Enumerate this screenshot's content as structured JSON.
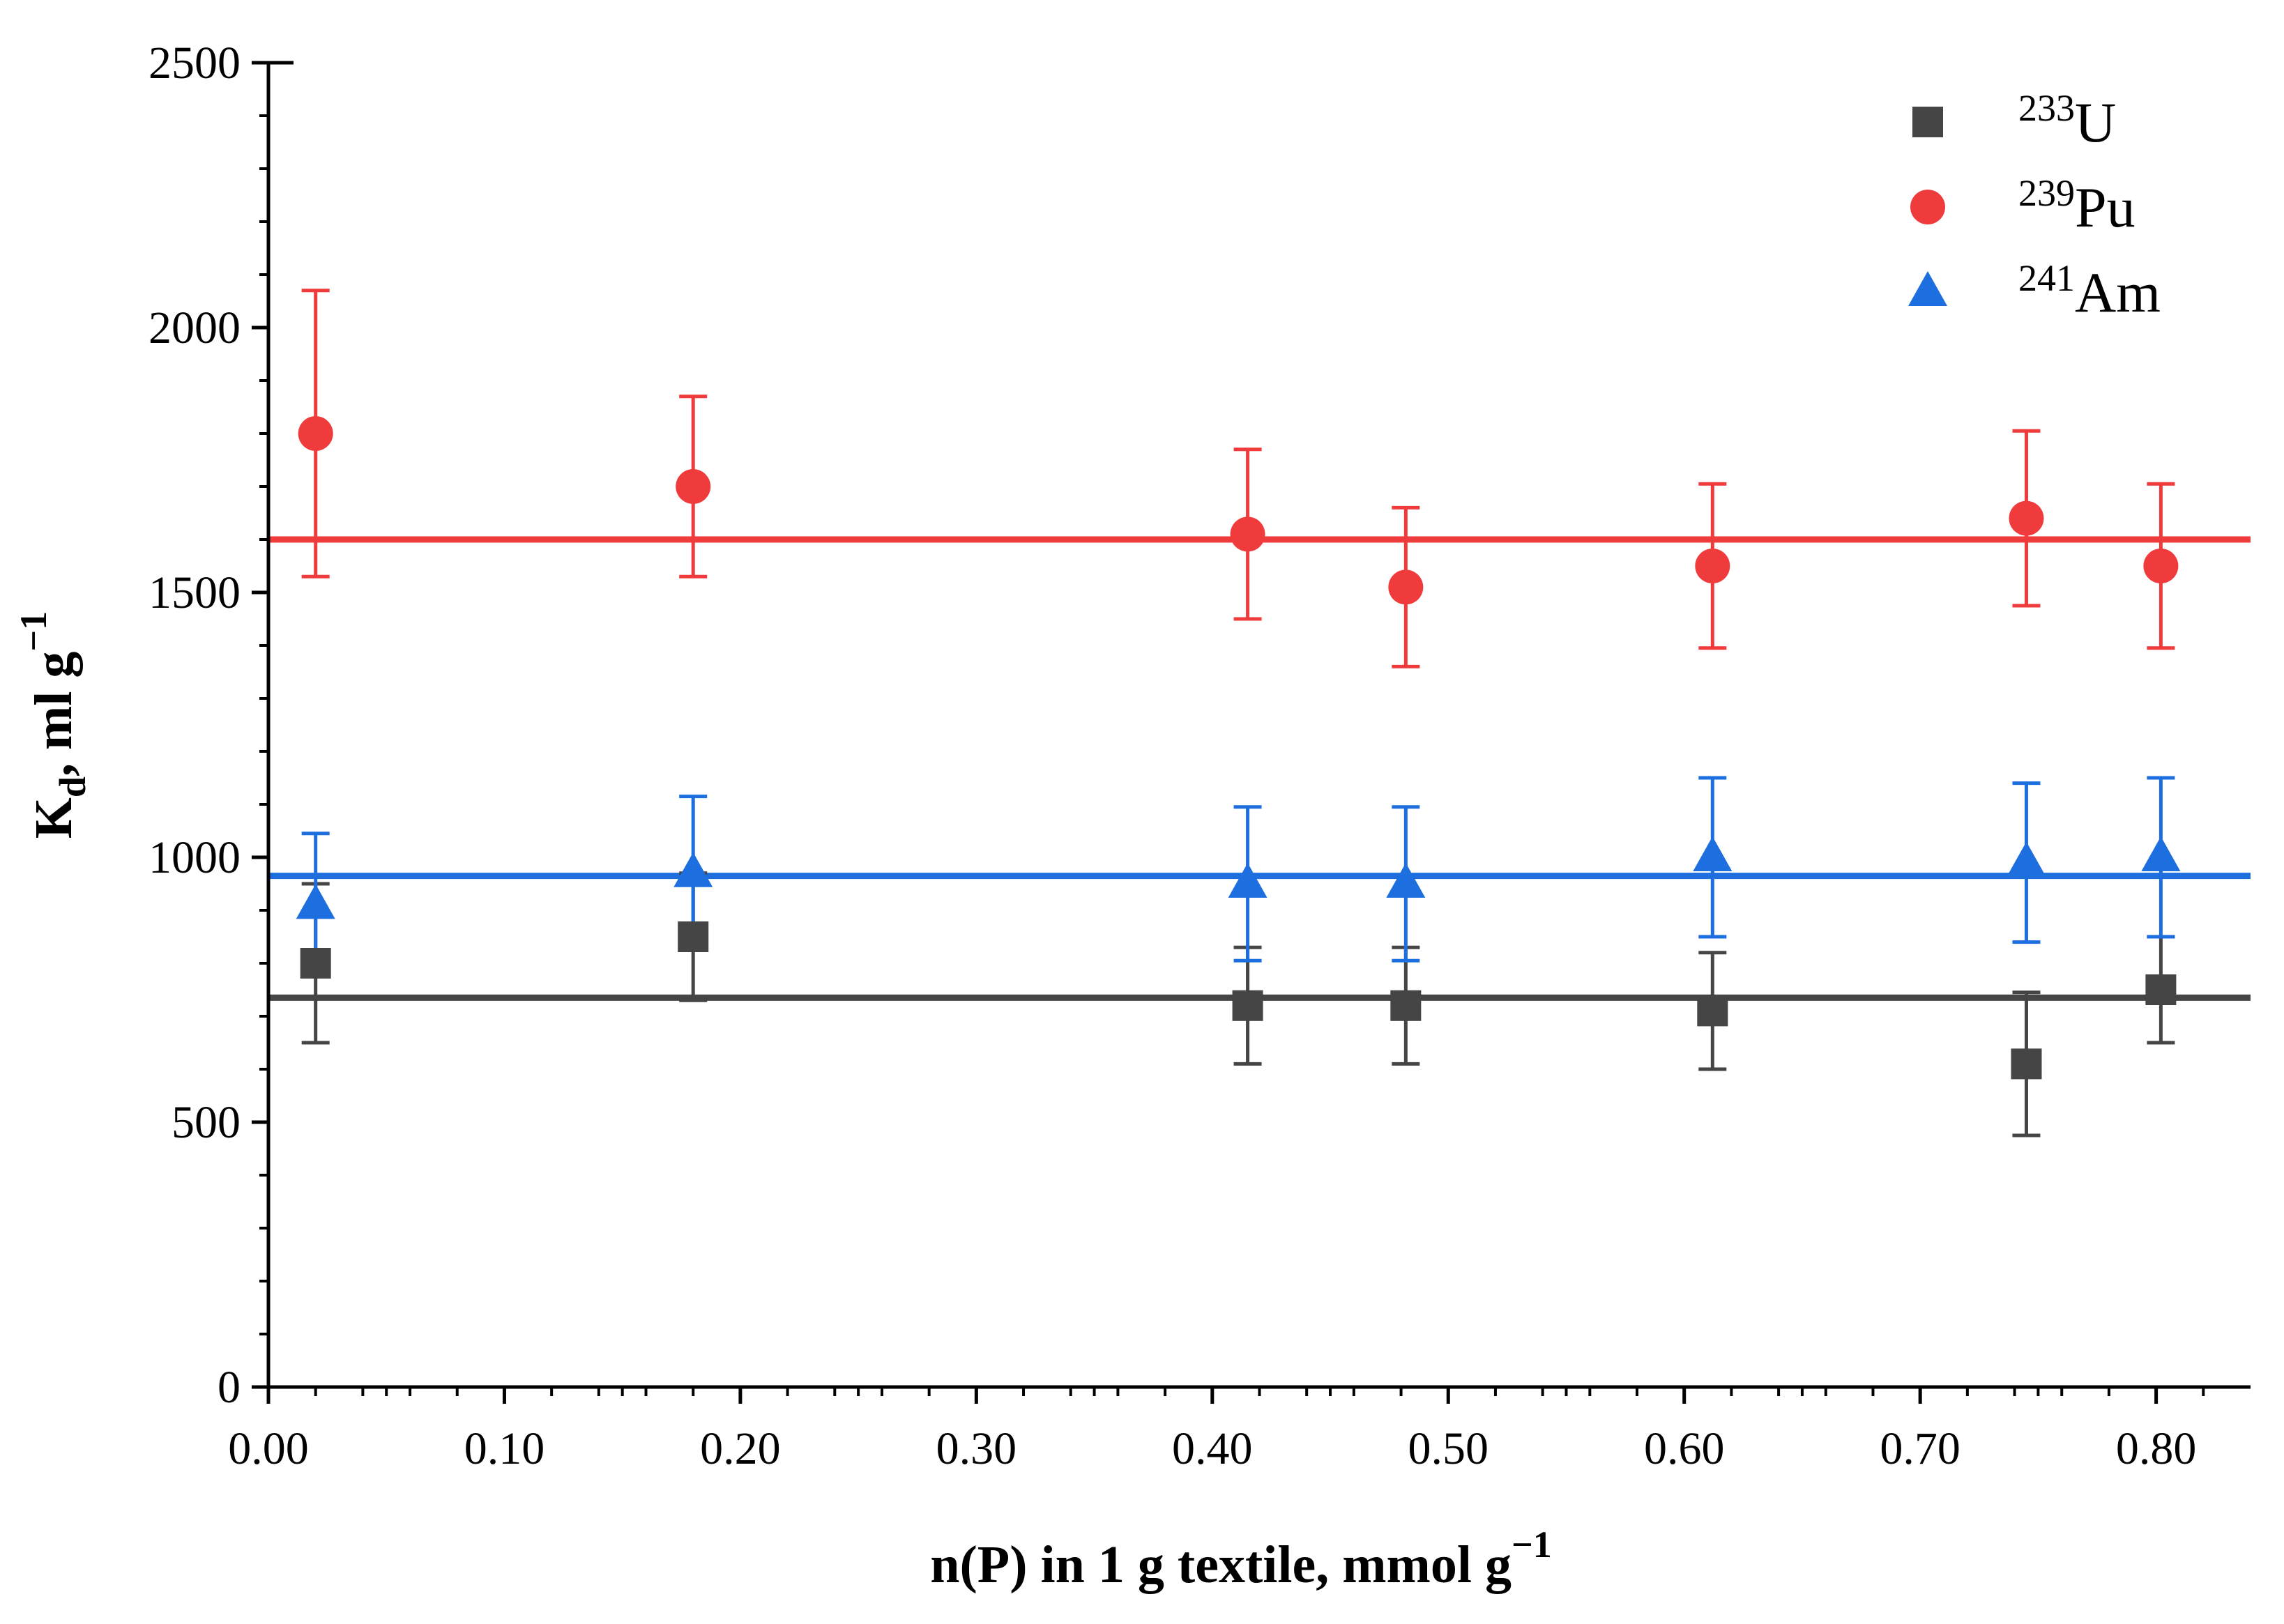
{
  "chart_data": {
    "type": "scatter",
    "title": "",
    "xlabel": {
      "main": "n(P) in 1 g textile, mmol g",
      "sup": "−1"
    },
    "ylabel": {
      "main": "K",
      "sub": "d",
      "rest": ", ml g",
      "sup": "−1"
    },
    "xlim": [
      0.0,
      0.84
    ],
    "ylim": [
      0,
      2500
    ],
    "x_ticks": [
      0.0,
      0.1,
      0.2,
      0.3,
      0.4,
      0.5,
      0.6,
      0.7,
      0.8
    ],
    "x_tick_labels": [
      "0.00",
      "0.10",
      "0.20",
      "0.30",
      "0.40",
      "0.50",
      "0.60",
      "0.70",
      "0.80"
    ],
    "y_ticks": [
      0,
      500,
      1000,
      1500,
      2000,
      2500
    ],
    "y_tick_labels": [
      "0",
      "500",
      "1000",
      "1500",
      "2000",
      "2500"
    ],
    "grid": false,
    "legend_position": "top-right",
    "series": [
      {
        "name": "U",
        "name_sup": "233",
        "marker": "square",
        "color": "#454545",
        "x": [
          0.02,
          0.18,
          0.415,
          0.482,
          0.612,
          0.745,
          0.802
        ],
        "y": [
          800,
          850,
          720,
          720,
          710,
          610,
          750
        ],
        "err": [
          150,
          120,
          110,
          110,
          110,
          135,
          100
        ],
        "fit_y": 735
      },
      {
        "name": "Pu",
        "name_sup": "239",
        "marker": "circle",
        "color": "#ef3b3b",
        "x": [
          0.02,
          0.18,
          0.415,
          0.482,
          0.612,
          0.745,
          0.802
        ],
        "y": [
          1800,
          1700,
          1610,
          1510,
          1550,
          1640,
          1550
        ],
        "err": [
          270,
          170,
          160,
          150,
          155,
          165,
          155
        ],
        "fit_y": 1600
      },
      {
        "name": "Am",
        "name_sup": "241",
        "marker": "triangle",
        "color": "#1d6fe0",
        "x": [
          0.02,
          0.18,
          0.415,
          0.482,
          0.612,
          0.745,
          0.802
        ],
        "y": [
          910,
          970,
          950,
          950,
          1000,
          990,
          1000
        ],
        "err": [
          135,
          145,
          145,
          145,
          150,
          150,
          150
        ],
        "fit_y": 965
      }
    ]
  }
}
